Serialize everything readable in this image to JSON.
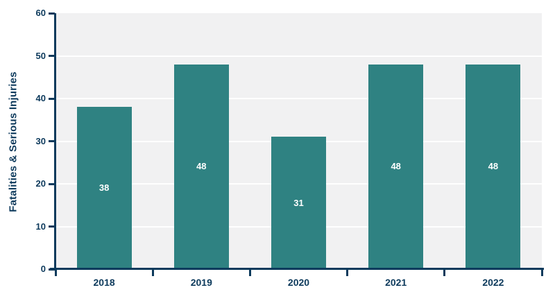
{
  "chart_data": {
    "type": "bar",
    "title": "",
    "categories": [
      "2018",
      "2019",
      "2020",
      "2021",
      "2022"
    ],
    "values": [
      38,
      48,
      31,
      48,
      48
    ],
    "bar_labels": [
      "38",
      "48",
      "31",
      "48",
      "48"
    ],
    "xlabel": "",
    "ylabel": "Fatalities & Serious Injuries",
    "ylim": [
      0,
      60
    ],
    "y_ticks": [
      0,
      10,
      20,
      30,
      40,
      50,
      60
    ],
    "grid": "horizontal white gridlines over light gray plot background",
    "legend_position": "none",
    "colors": {
      "bar": "#2f8282",
      "axis": "#0d3a5c",
      "tick_label": "#0d3a5c",
      "axis_title": "#0d3a5c",
      "bar_label": "#ffffff",
      "plot_background": "#f1f1f2",
      "page_background": "#ffffff",
      "gridline": "#ffffff"
    }
  }
}
